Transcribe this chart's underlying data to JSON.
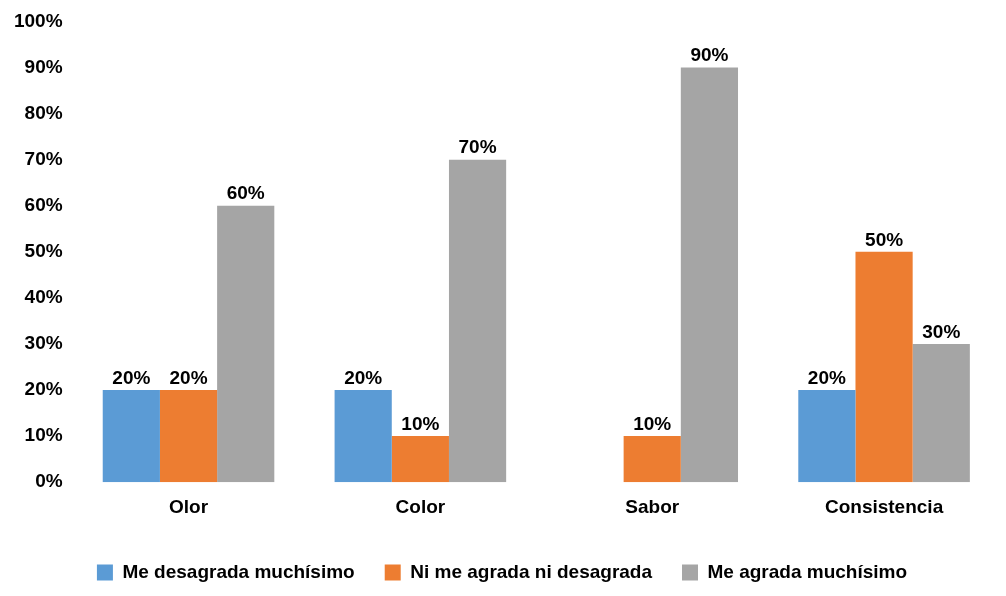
{
  "chart_data": {
    "type": "bar",
    "categories": [
      "Olor",
      "Color",
      "Sabor",
      "Consistencia"
    ],
    "series": [
      {
        "name": "Me desagrada muchísimo",
        "color": "#5b9bd5",
        "values": [
          20,
          20,
          null,
          20
        ],
        "value_labels": [
          "20%",
          "20%",
          null,
          "20%"
        ]
      },
      {
        "name": "Ni me agrada ni desagrada",
        "color": "#ed7d31",
        "values": [
          20,
          10,
          10,
          50
        ],
        "value_labels": [
          "20%",
          "10%",
          "10%",
          "50%"
        ]
      },
      {
        "name": "Me agrada muchísimo",
        "color": "#a5a5a5",
        "values": [
          60,
          70,
          90,
          30
        ],
        "value_labels": [
          "60%",
          "70%",
          "90%",
          "30%"
        ]
      }
    ],
    "ylim": [
      0,
      100
    ],
    "yticks": [
      {
        "value": 0,
        "label": "0%"
      },
      {
        "value": 10,
        "label": "10%"
      },
      {
        "value": 20,
        "label": "20%"
      },
      {
        "value": 30,
        "label": "30%"
      },
      {
        "value": 40,
        "label": "40%"
      },
      {
        "value": 50,
        "label": "50%"
      },
      {
        "value": 60,
        "label": "60%"
      },
      {
        "value": 70,
        "label": "70%"
      },
      {
        "value": 80,
        "label": "80%"
      },
      {
        "value": 90,
        "label": "90%"
      },
      {
        "value": 100,
        "label": "100%"
      }
    ],
    "grid": false,
    "legend": "bottom"
  }
}
